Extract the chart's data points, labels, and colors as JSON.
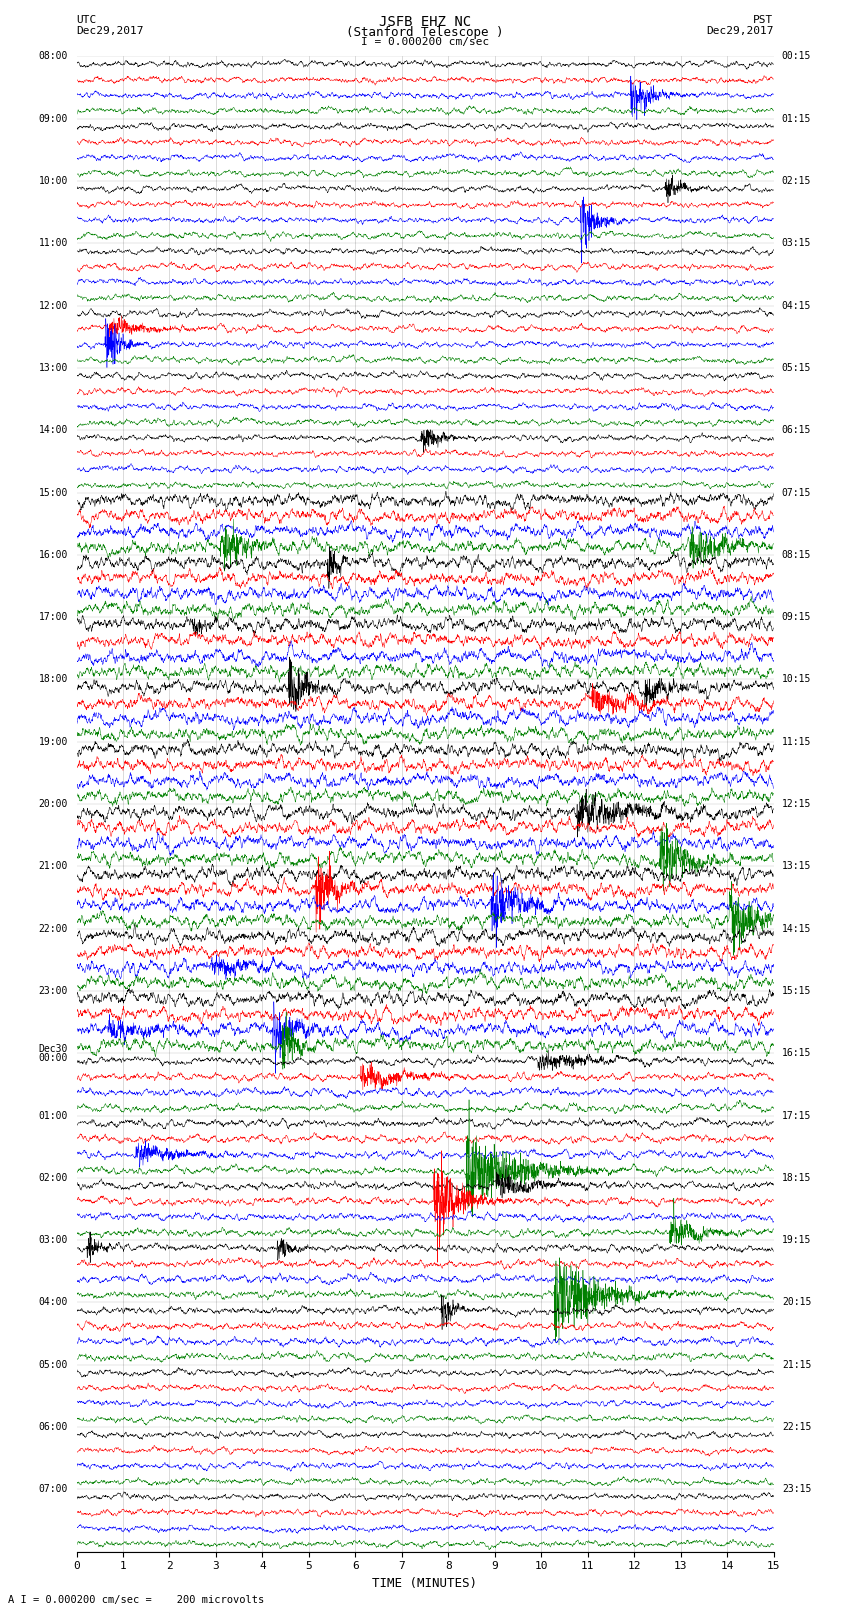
{
  "title_line1": "JSFB EHZ NC",
  "title_line2": "(Stanford Telescope )",
  "scale_label": "I = 0.000200 cm/sec",
  "bottom_label": "A I = 0.000200 cm/sec =    200 microvolts",
  "xlabel": "TIME (MINUTES)",
  "left_times": [
    "08:00",
    "09:00",
    "10:00",
    "11:00",
    "12:00",
    "13:00",
    "14:00",
    "15:00",
    "16:00",
    "17:00",
    "18:00",
    "19:00",
    "20:00",
    "21:00",
    "22:00",
    "23:00",
    "Dec30\n00:00",
    "01:00",
    "02:00",
    "03:00",
    "04:00",
    "05:00",
    "06:00",
    "07:00"
  ],
  "right_times": [
    "00:15",
    "01:15",
    "02:15",
    "03:15",
    "04:15",
    "05:15",
    "06:15",
    "07:15",
    "08:15",
    "09:15",
    "10:15",
    "11:15",
    "12:15",
    "13:15",
    "14:15",
    "15:15",
    "16:15",
    "17:15",
    "18:15",
    "19:15",
    "20:15",
    "21:15",
    "22:15",
    "23:15"
  ],
  "trace_colors": [
    "black",
    "red",
    "blue",
    "green"
  ],
  "n_hours": 24,
  "traces_per_hour": 4,
  "x_min": 0,
  "x_max": 15,
  "x_ticks": [
    0,
    1,
    2,
    3,
    4,
    5,
    6,
    7,
    8,
    9,
    10,
    11,
    12,
    13,
    14,
    15
  ],
  "bg_color": "white",
  "seed": 42,
  "fig_width": 8.5,
  "fig_height": 16.13,
  "dpi": 100
}
